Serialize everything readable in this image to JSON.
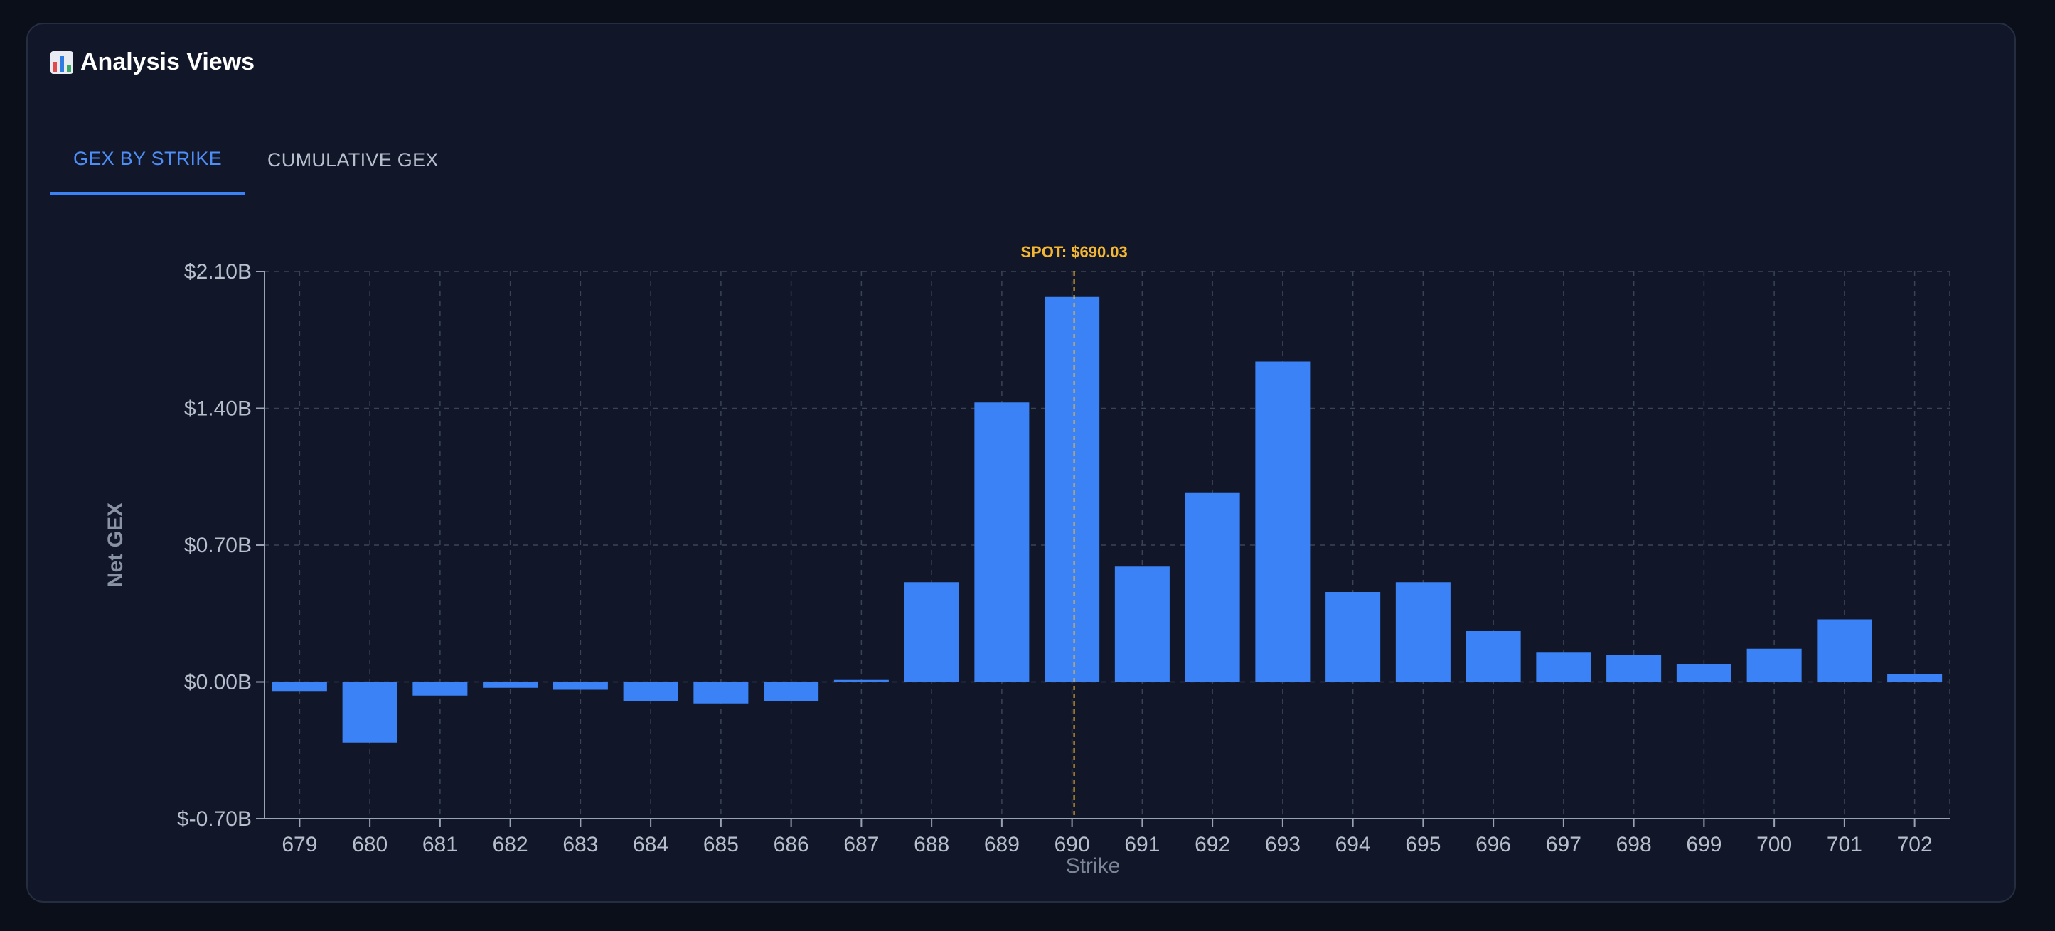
{
  "header": {
    "title": "Analysis Views",
    "icon": "bar-chart-icon"
  },
  "tabs": [
    {
      "label": "GEX BY STRIKE",
      "active": true
    },
    {
      "label": "CUMULATIVE GEX",
      "active": false
    }
  ],
  "colors": {
    "bar": "#3b82f6",
    "spot": "#f5b731",
    "accent": "#4e8ef7",
    "axis_text": "#b7bfcc",
    "grid": "#3a4356"
  },
  "chart_data": {
    "type": "bar",
    "xlabel": "Strike",
    "ylabel": "Net GEX",
    "ylim": [
      -0.7,
      2.1
    ],
    "yticks": [
      2.1,
      1.4,
      0.7,
      0.0,
      -0.7
    ],
    "ytick_labels": [
      "$2.10B",
      "$1.40B",
      "$0.70B",
      "$0.00B",
      "$-0.70B"
    ],
    "grid": true,
    "categories": [
      "679",
      "680",
      "681",
      "682",
      "683",
      "684",
      "685",
      "686",
      "687",
      "688",
      "689",
      "690",
      "691",
      "692",
      "693",
      "694",
      "695",
      "696",
      "697",
      "698",
      "699",
      "700",
      "701",
      "702"
    ],
    "values": [
      -0.05,
      -0.31,
      -0.07,
      -0.03,
      -0.04,
      -0.1,
      -0.11,
      -0.1,
      0.01,
      0.51,
      1.43,
      1.97,
      0.59,
      0.97,
      1.64,
      0.46,
      0.51,
      0.26,
      0.15,
      0.14,
      0.09,
      0.17,
      0.32,
      0.04
    ],
    "spot": {
      "label": "SPOT: $690.03",
      "value": 690.03
    }
  }
}
